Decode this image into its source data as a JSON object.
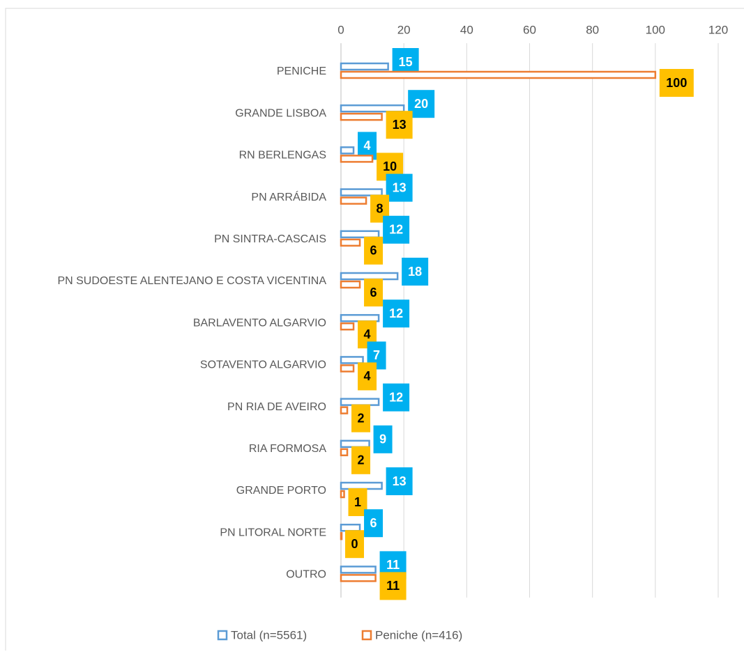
{
  "chart_data": {
    "type": "bar",
    "orientation": "horizontal",
    "categories": [
      "PENICHE",
      "GRANDE LISBOA",
      "RN BERLENGAS",
      "PN ARRÁBIDA",
      "PN SINTRA-CASCAIS",
      "PN SUDOESTE ALENTEJANO E COSTA VICENTINA",
      "BARLAVENTO ALGARVIO",
      "SOTAVENTO ALGARVIO",
      "PN RIA DE AVEIRO",
      "RIA FORMOSA",
      "GRANDE PORTO",
      "PN LITORAL NORTE",
      "OUTRO"
    ],
    "series": [
      {
        "name": "Total (n=5561)",
        "color": "#5b9bd5",
        "label_color": "#00b0f0",
        "values": [
          15,
          20,
          4,
          13,
          12,
          18,
          12,
          7,
          12,
          9,
          13,
          6,
          11
        ]
      },
      {
        "name": "Peniche (n=416)",
        "color": "#ed7d31",
        "label_color": "#ffc000",
        "values": [
          100,
          13,
          10,
          8,
          6,
          6,
          4,
          4,
          2,
          2,
          1,
          0,
          11
        ]
      }
    ],
    "xlim": [
      0,
      120
    ],
    "xticks": [
      0,
      20,
      40,
      60,
      80,
      100,
      120
    ],
    "grid": true,
    "legend": "bottom"
  }
}
